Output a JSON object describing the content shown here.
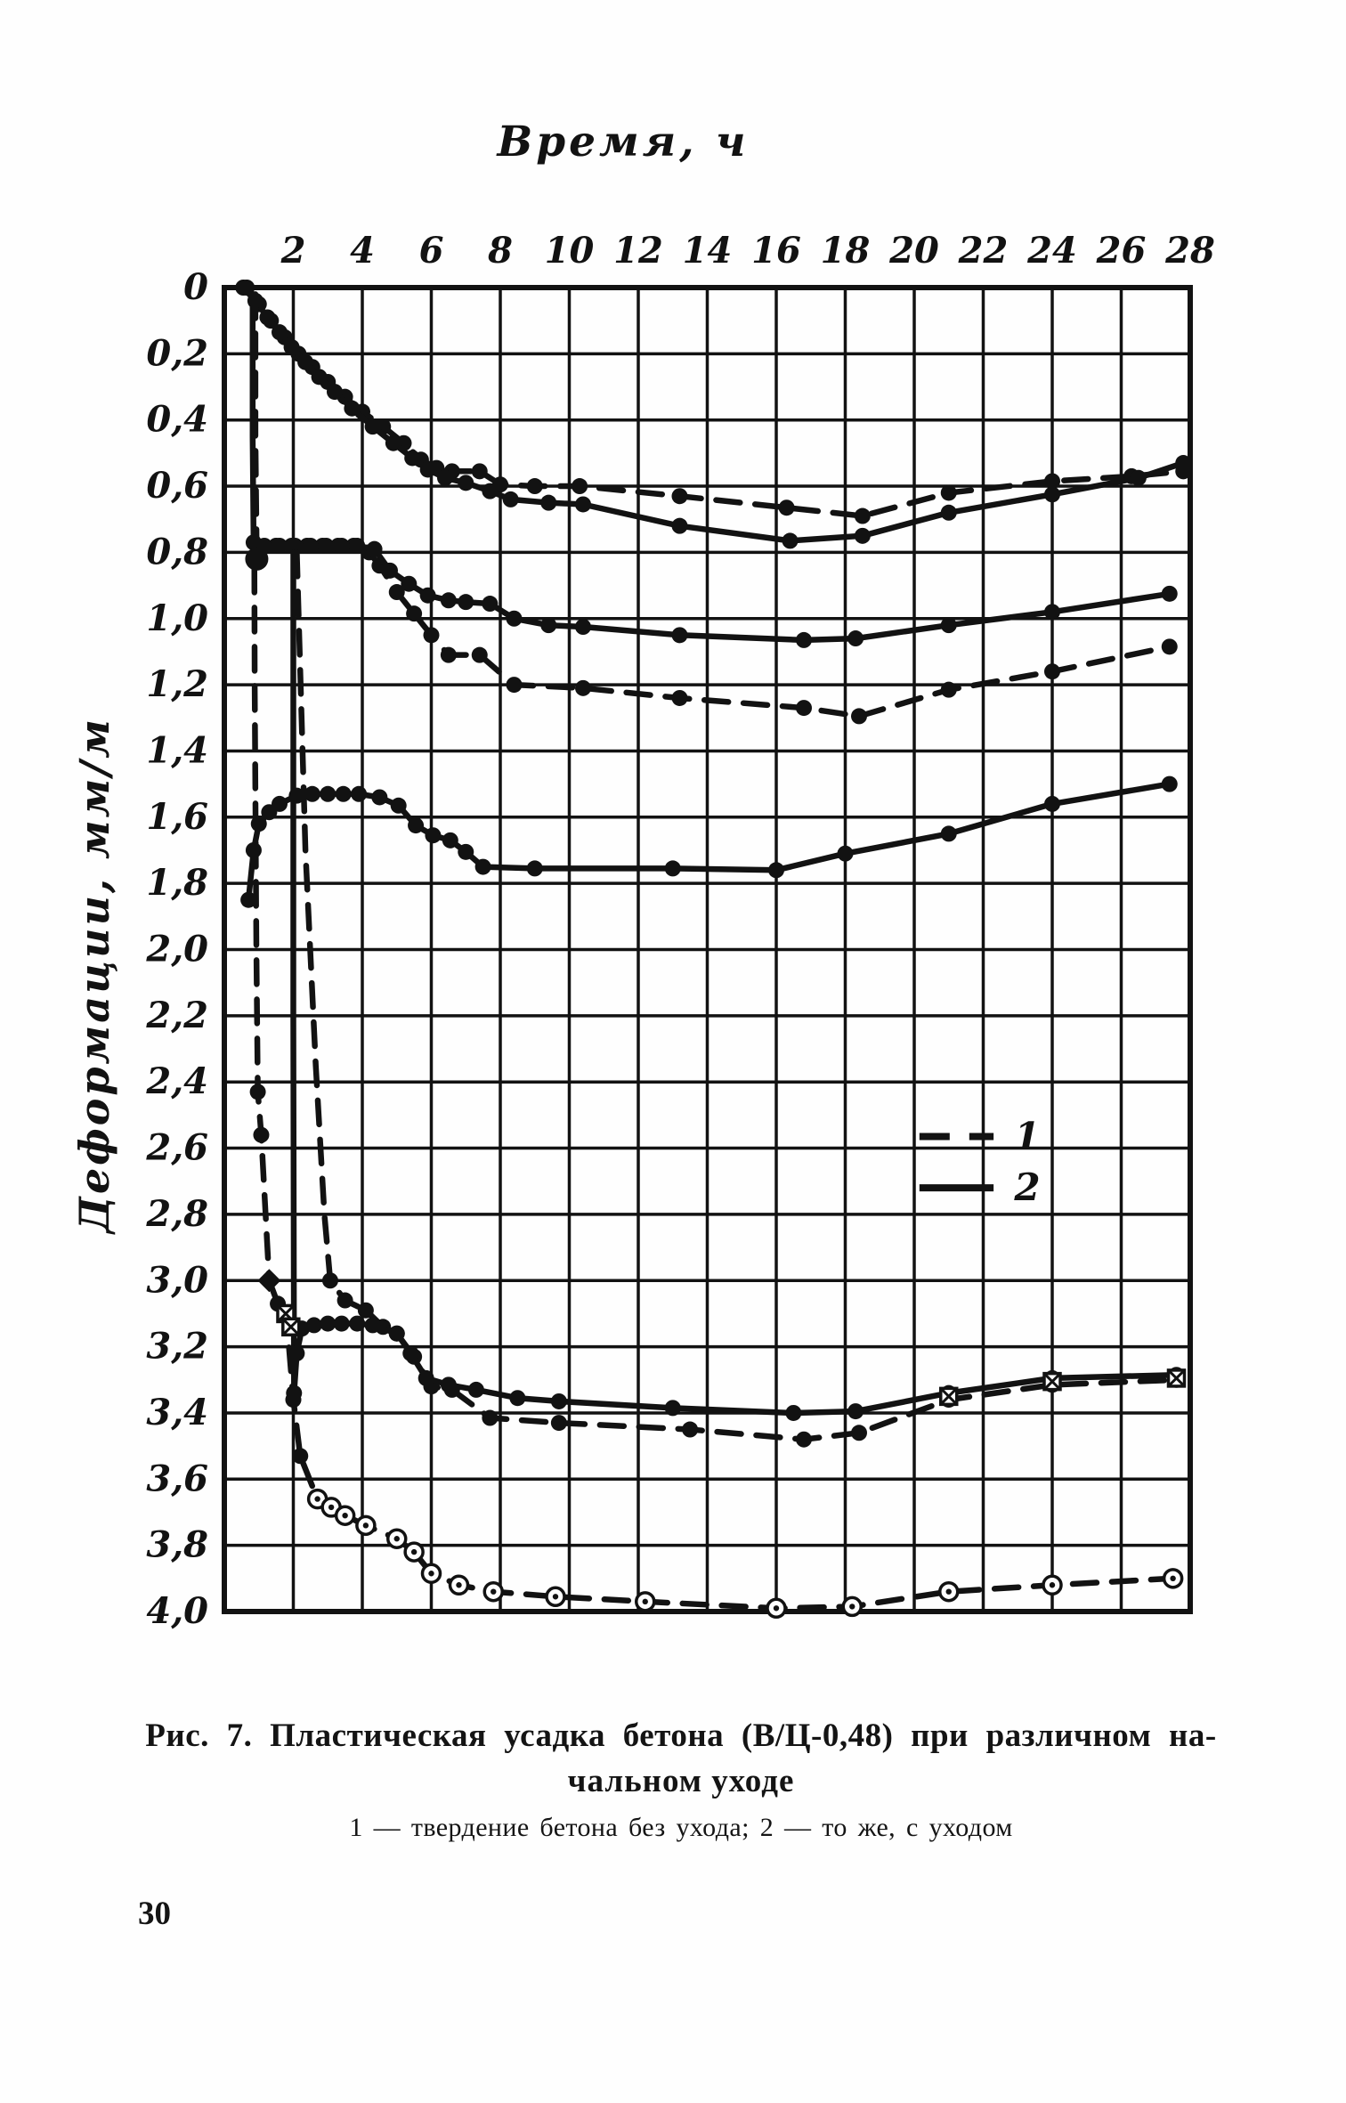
{
  "page": {
    "number": "30"
  },
  "caption": {
    "line1": "Рис. 7. Пластическая усадка бетона (В/Ц-0,48) при различном на-",
    "line2": "чальном уходе",
    "note": "1 — твердение бетона без ухода; 2 — то же, с уходом"
  },
  "chart_data": {
    "type": "line",
    "title": "Время, ч",
    "xlabel": "Время, ч",
    "ylabel": "Деформации, мм/м",
    "xlim": [
      0,
      28
    ],
    "ylim": [
      0,
      4.0
    ],
    "y_axis_inverted_note": "deformation increases downward",
    "grid": "on",
    "x_tick_step": 2,
    "y_tick_step": 0.2,
    "x_ticks": [
      2,
      4,
      6,
      8,
      10,
      12,
      14,
      16,
      18,
      20,
      22,
      24,
      26,
      28
    ],
    "y_ticks": [
      "0",
      "0,2",
      "0,4",
      "0,6",
      "0,8",
      "1,0",
      "1,2",
      "1,4",
      "1,6",
      "1,8",
      "2,0",
      "2,2",
      "2,4",
      "2,6",
      "2,8",
      "3,0",
      "3,2",
      "3,4",
      "3,6",
      "3,8",
      "4,0"
    ],
    "legend": {
      "position": "center-right",
      "items": [
        {
          "label": "1",
          "style": "dashed",
          "meaning": "твердение бетона без ухода"
        },
        {
          "label": "2",
          "style": "solid",
          "meaning": "то же, с уходом"
        }
      ]
    },
    "series": [
      {
        "name": "a-dashed",
        "legend": "1",
        "style": "dashed",
        "marker": "dot",
        "marker_skip": 0,
        "points": [
          [
            0.65,
            0
          ],
          [
            1.0,
            0.05
          ],
          [
            1.35,
            0.1
          ],
          [
            1.75,
            0.15
          ],
          [
            2.15,
            0.2
          ],
          [
            2.55,
            0.24
          ],
          [
            3.0,
            0.285
          ],
          [
            3.5,
            0.33
          ],
          [
            4.0,
            0.375
          ],
          [
            4.6,
            0.42
          ],
          [
            5.2,
            0.47
          ],
          [
            5.7,
            0.52
          ],
          [
            6.15,
            0.545
          ],
          [
            6.6,
            0.555
          ],
          [
            7.4,
            0.555
          ],
          [
            8.0,
            0.595
          ],
          [
            9.0,
            0.6
          ],
          [
            10.3,
            0.6
          ],
          [
            13.2,
            0.63
          ],
          [
            16.3,
            0.665
          ],
          [
            18.5,
            0.69
          ],
          [
            21.0,
            0.62
          ],
          [
            24.0,
            0.585
          ],
          [
            26.3,
            0.57
          ],
          [
            27.8,
            0.555
          ]
        ]
      },
      {
        "name": "a-solid",
        "legend": "2",
        "style": "solid",
        "marker": "dot",
        "marker_skip": 0,
        "points": [
          [
            0.55,
            0
          ],
          [
            0.9,
            0.04
          ],
          [
            1.25,
            0.09
          ],
          [
            1.6,
            0.135
          ],
          [
            1.95,
            0.18
          ],
          [
            2.35,
            0.225
          ],
          [
            2.75,
            0.27
          ],
          [
            3.2,
            0.315
          ],
          [
            3.7,
            0.365
          ],
          [
            4.3,
            0.42
          ],
          [
            4.9,
            0.47
          ],
          [
            5.45,
            0.515
          ],
          [
            5.9,
            0.55
          ],
          [
            6.4,
            0.575
          ],
          [
            7.0,
            0.59
          ],
          [
            7.7,
            0.615
          ],
          [
            8.3,
            0.64
          ],
          [
            9.4,
            0.65
          ],
          [
            10.4,
            0.655
          ],
          [
            13.2,
            0.72
          ],
          [
            16.4,
            0.765
          ],
          [
            18.5,
            0.75
          ],
          [
            21.0,
            0.68
          ],
          [
            24.0,
            0.625
          ],
          [
            26.5,
            0.575
          ],
          [
            27.8,
            0.53
          ]
        ]
      },
      {
        "name": "b-dashed",
        "legend": "1",
        "style": "dashed",
        "marker": "dot",
        "marker_skip": 2,
        "points": [
          [
            0.9,
            0.02
          ],
          [
            0.9,
            0.45
          ],
          [
            0.94,
            0.82
          ],
          [
            1.1,
            0.785
          ],
          [
            1.5,
            0.78
          ],
          [
            1.95,
            0.78
          ],
          [
            2.4,
            0.78
          ],
          [
            2.85,
            0.78
          ],
          [
            3.3,
            0.78
          ],
          [
            3.75,
            0.78
          ],
          [
            4.2,
            0.8
          ],
          [
            4.5,
            0.84
          ],
          [
            5.0,
            0.92
          ],
          [
            5.5,
            0.985
          ],
          [
            6.0,
            1.05
          ],
          [
            6.5,
            1.11
          ],
          [
            7.4,
            1.11
          ],
          [
            8.4,
            1.2
          ],
          [
            10.4,
            1.21
          ],
          [
            13.2,
            1.24
          ],
          [
            16.8,
            1.27
          ],
          [
            18.4,
            1.295
          ],
          [
            21.0,
            1.215
          ],
          [
            24.0,
            1.16
          ],
          [
            27.4,
            1.085
          ]
        ]
      },
      {
        "name": "b-solid",
        "legend": "2",
        "style": "solid",
        "marker": "dot",
        "marker_skip": 2,
        "points": [
          [
            0.82,
            0.02
          ],
          [
            0.82,
            0.45
          ],
          [
            0.85,
            0.77
          ],
          [
            1.16,
            0.78
          ],
          [
            1.6,
            0.78
          ],
          [
            2.05,
            0.78
          ],
          [
            2.5,
            0.78
          ],
          [
            2.95,
            0.78
          ],
          [
            3.4,
            0.78
          ],
          [
            3.85,
            0.78
          ],
          [
            4.35,
            0.79
          ],
          [
            4.8,
            0.855
          ],
          [
            5.35,
            0.895
          ],
          [
            5.9,
            0.93
          ],
          [
            6.5,
            0.945
          ],
          [
            7.0,
            0.95
          ],
          [
            7.7,
            0.955
          ],
          [
            8.4,
            1.0
          ],
          [
            9.4,
            1.02
          ],
          [
            10.4,
            1.025
          ],
          [
            13.2,
            1.05
          ],
          [
            16.8,
            1.065
          ],
          [
            18.3,
            1.06
          ],
          [
            21.0,
            1.02
          ],
          [
            24.0,
            0.98
          ],
          [
            27.4,
            0.925
          ]
        ]
      },
      {
        "name": "c-solid",
        "legend": "2",
        "style": "solid",
        "marker": "dot",
        "marker_skip": 0,
        "points": [
          [
            0.7,
            1.85
          ],
          [
            0.85,
            1.7
          ],
          [
            1.0,
            1.62
          ],
          [
            1.3,
            1.585
          ],
          [
            1.6,
            1.56
          ],
          [
            2.1,
            1.535
          ],
          [
            2.55,
            1.53
          ],
          [
            3.0,
            1.53
          ],
          [
            3.45,
            1.53
          ],
          [
            3.9,
            1.53
          ],
          [
            4.5,
            1.54
          ],
          [
            5.05,
            1.565
          ],
          [
            5.55,
            1.625
          ],
          [
            6.05,
            1.655
          ],
          [
            6.55,
            1.67
          ],
          [
            7.0,
            1.705
          ],
          [
            7.5,
            1.75
          ],
          [
            9.0,
            1.755
          ],
          [
            13.0,
            1.755
          ],
          [
            16.0,
            1.76
          ],
          [
            18.0,
            1.71
          ],
          [
            21.0,
            1.65
          ],
          [
            24.0,
            1.56
          ],
          [
            27.4,
            1.5
          ]
        ]
      },
      {
        "name": "d-deep-dashed",
        "legend": "1",
        "style": "dashed",
        "marker": "dot",
        "marker_skip": 3,
        "open_from": 10,
        "points": [
          [
            0.85,
            0.02
          ],
          [
            0.88,
            1.2
          ],
          [
            0.93,
            2.0
          ],
          [
            0.97,
            2.43
          ],
          [
            1.07,
            2.56
          ],
          [
            1.3,
            3.0
          ],
          [
            1.55,
            3.07
          ],
          [
            1.8,
            3.11
          ],
          [
            2.0,
            3.36
          ],
          [
            2.2,
            3.53
          ],
          [
            2.7,
            3.66
          ],
          [
            3.1,
            3.685
          ],
          [
            3.5,
            3.71
          ],
          [
            4.1,
            3.74
          ],
          [
            5.0,
            3.78
          ],
          [
            5.5,
            3.82
          ],
          [
            6.0,
            3.885
          ],
          [
            6.8,
            3.92
          ],
          [
            7.8,
            3.94
          ],
          [
            9.6,
            3.955
          ],
          [
            12.2,
            3.97
          ],
          [
            16.0,
            3.99
          ],
          [
            18.2,
            3.985
          ],
          [
            21.0,
            3.94
          ],
          [
            24.0,
            3.92
          ],
          [
            27.5,
            3.9
          ]
        ]
      },
      {
        "name": "d-mid-dashed",
        "legend": "1",
        "style": "dashed",
        "marker": "dot",
        "marker_skip": 4,
        "points": [
          [
            2.1,
            0.8
          ],
          [
            2.35,
            1.7
          ],
          [
            2.65,
            2.35
          ],
          [
            2.9,
            2.8
          ],
          [
            3.07,
            3.0
          ],
          [
            3.5,
            3.06
          ],
          [
            4.1,
            3.09
          ],
          [
            4.6,
            3.14
          ],
          [
            5.0,
            3.16
          ],
          [
            5.5,
            3.23
          ],
          [
            6.0,
            3.32
          ],
          [
            6.6,
            3.33
          ],
          [
            7.7,
            3.415
          ],
          [
            9.7,
            3.43
          ],
          [
            13.5,
            3.45
          ],
          [
            16.8,
            3.48
          ],
          [
            18.4,
            3.46
          ],
          [
            21.0,
            3.36
          ],
          [
            24.0,
            3.315
          ],
          [
            27.6,
            3.3
          ]
        ]
      },
      {
        "name": "d-solid",
        "legend": "2",
        "style": "solid",
        "marker": "dot",
        "marker_skip": 2,
        "points": [
          [
            2.0,
            0.8
          ],
          [
            2.0,
            2.2
          ],
          [
            2.02,
            3.34
          ],
          [
            2.1,
            3.22
          ],
          [
            2.25,
            3.145
          ],
          [
            2.6,
            3.135
          ],
          [
            3.0,
            3.13
          ],
          [
            3.4,
            3.13
          ],
          [
            3.85,
            3.13
          ],
          [
            4.3,
            3.135
          ],
          [
            5.0,
            3.16
          ],
          [
            5.4,
            3.22
          ],
          [
            5.85,
            3.295
          ],
          [
            6.5,
            3.315
          ],
          [
            7.3,
            3.33
          ],
          [
            8.5,
            3.355
          ],
          [
            9.7,
            3.365
          ],
          [
            13.0,
            3.385
          ],
          [
            16.5,
            3.4
          ],
          [
            18.3,
            3.395
          ],
          [
            21.0,
            3.34
          ],
          [
            24.0,
            3.295
          ],
          [
            27.6,
            3.285
          ]
        ]
      }
    ],
    "special_markers": {
      "crossed_squares": [
        [
          1.78,
          3.1
        ],
        [
          1.93,
          3.14
        ],
        [
          21.0,
          3.35
        ],
        [
          24.0,
          3.305
        ],
        [
          27.6,
          3.295
        ]
      ],
      "diamond": [
        [
          1.3,
          3.0
        ]
      ],
      "big_dots": [
        [
          0.94,
          0.82
        ]
      ]
    }
  }
}
